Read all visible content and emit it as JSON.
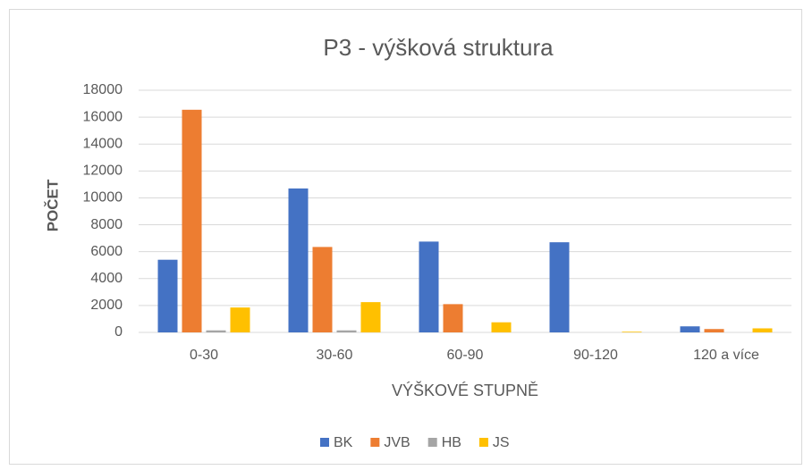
{
  "chart_data": {
    "type": "bar",
    "title": "P3 - výšková struktura",
    "x_label": "VÝŠKOVÉ STUPNĚ",
    "y_label": "POČET",
    "categories": [
      "0-30",
      "30-60",
      "60-90",
      "90-120",
      "120 a více"
    ],
    "series": [
      {
        "name": "BK",
        "color": "#4472c4",
        "values": [
          5400,
          10700,
          6750,
          6700,
          450
        ]
      },
      {
        "name": "JVB",
        "color": "#ed7d31",
        "values": [
          16550,
          6350,
          2100,
          0,
          250
        ]
      },
      {
        "name": "HB",
        "color": "#a5a5a5",
        "values": [
          150,
          150,
          0,
          0,
          0
        ]
      },
      {
        "name": "JS",
        "color": "#ffc000",
        "values": [
          1850,
          2250,
          750,
          50,
          300
        ]
      }
    ],
    "ylim": [
      0,
      18000
    ],
    "yticks": [
      0,
      2000,
      4000,
      6000,
      8000,
      10000,
      12000,
      14000,
      16000,
      18000
    ],
    "grid": true,
    "legend": "bottom"
  }
}
